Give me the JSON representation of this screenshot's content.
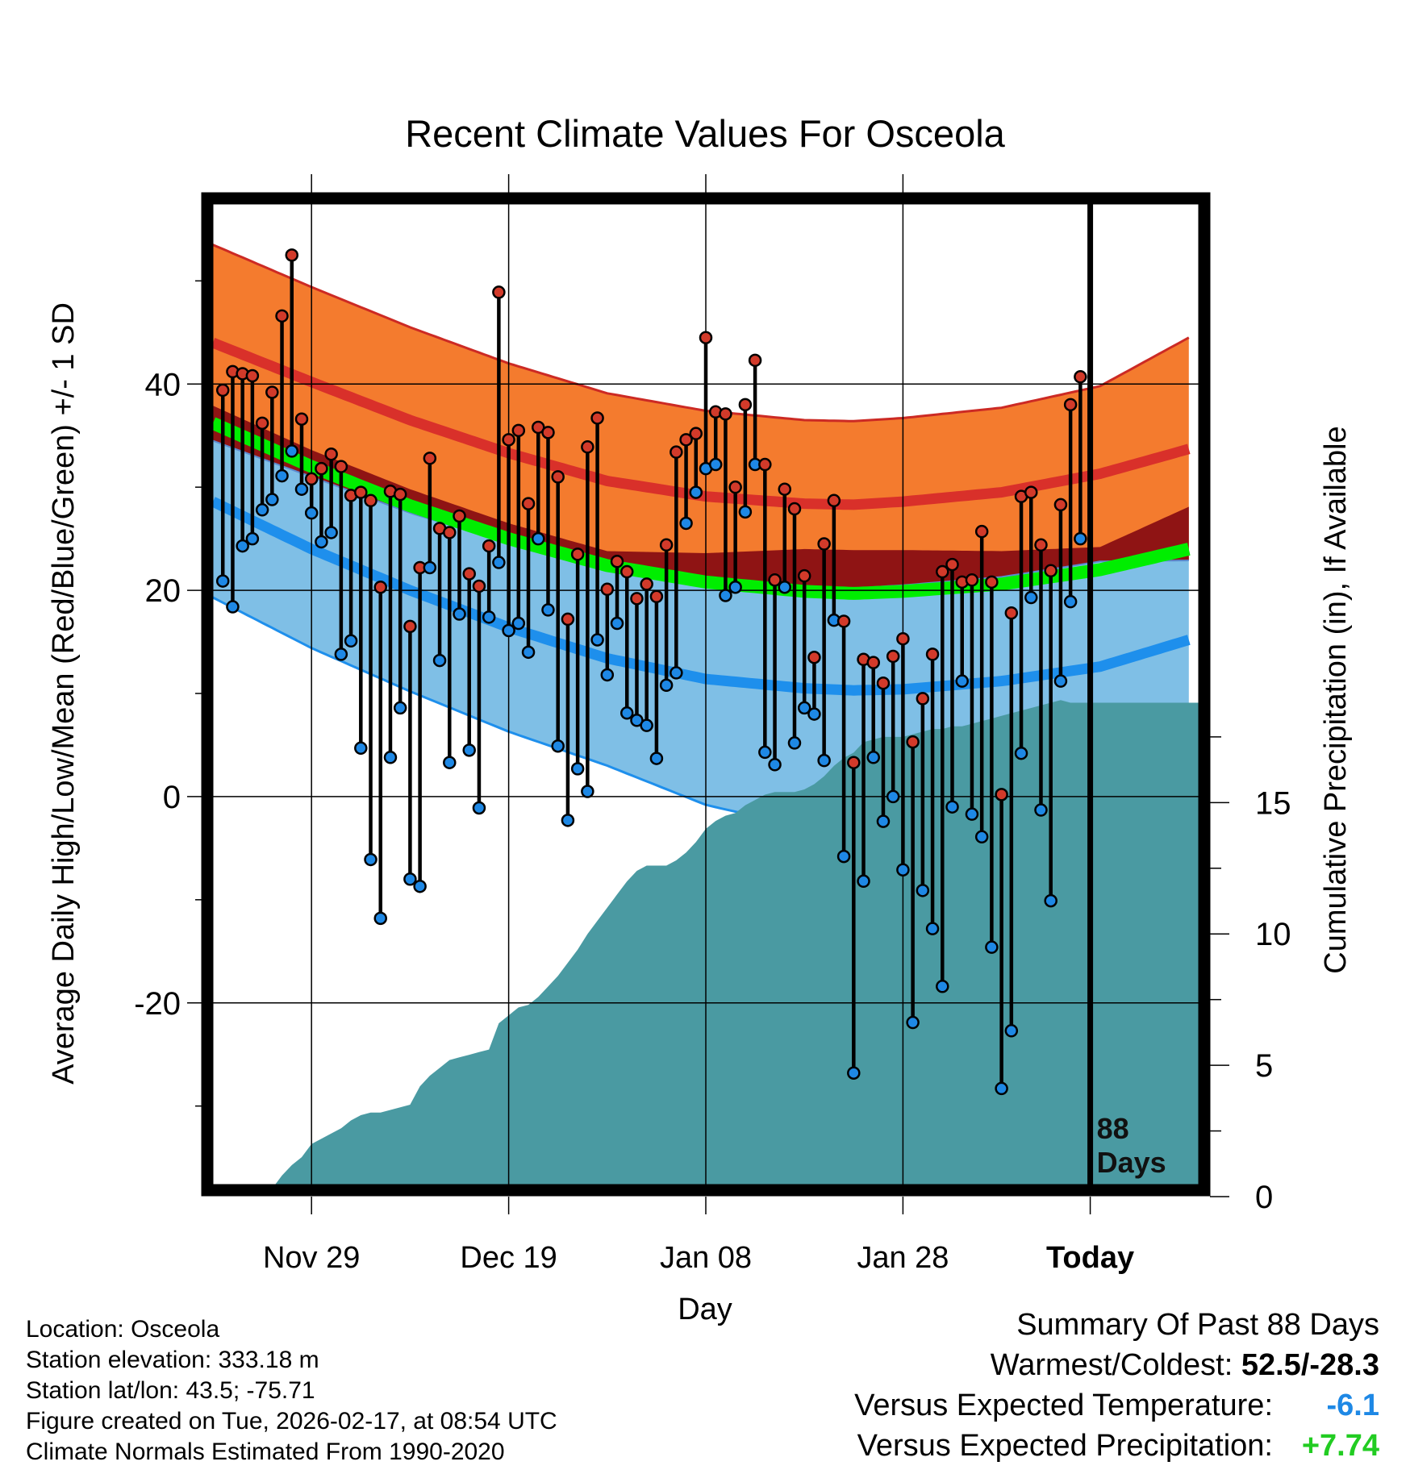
{
  "chart_data": {
    "type": "line",
    "title": "Recent Climate Values For Osceola",
    "xlabel": "Day",
    "ylabel": "Average Daily High/Low/Mean (Red/Blue/Green) +/- 1 SD",
    "y2label": "Cumulative Precipitation (in), If Available",
    "ylim": [
      -38,
      58
    ],
    "y2lim": [
      0,
      38
    ],
    "xlim": [
      0,
      100
    ],
    "today_day": 89,
    "days_label": [
      "88",
      "Days"
    ],
    "x_ticks": [
      {
        "day": 10,
        "label": "Nov 29"
      },
      {
        "day": 30,
        "label": "Dec 19"
      },
      {
        "day": 50,
        "label": "Jan 08"
      },
      {
        "day": 70,
        "label": "Jan 28"
      },
      {
        "day": 89,
        "label": "Today"
      }
    ],
    "y_ticks": [
      -20,
      0,
      20,
      40
    ],
    "y2_ticks": [
      0,
      5,
      10,
      15
    ],
    "colors": {
      "high_band": "#f47b2e",
      "high_line": "#d9302a",
      "high_sd_edge": "#cc2a24",
      "mean_band": "#8f1414",
      "mean_line": "#00ee00",
      "low_band": "#7fbfe6",
      "low_line": "#1e8fec",
      "precip": "#4a9aa2",
      "high_dot": "#d23a2a",
      "low_dot": "#1e88e5"
    },
    "normals": {
      "days": [
        0,
        10,
        20,
        30,
        40,
        50,
        60,
        65,
        70,
        80,
        90,
        99
      ],
      "high_mean": [
        44.0,
        40.2,
        36.5,
        33.3,
        30.6,
        29.1,
        28.4,
        28.3,
        28.6,
        29.5,
        31.3,
        33.7
      ],
      "high_sd": [
        9.5,
        9.2,
        9.0,
        8.7,
        8.5,
        8.3,
        8.1,
        8.1,
        8.1,
        8.2,
        8.5,
        10.8
      ],
      "mean": [
        36.2,
        32.0,
        28.2,
        25.0,
        22.4,
        20.8,
        19.9,
        19.7,
        19.9,
        20.6,
        22.0,
        24.0
      ],
      "low_mean": [
        28.6,
        24.0,
        20.0,
        16.4,
        13.4,
        11.4,
        10.5,
        10.3,
        10.4,
        11.2,
        12.6,
        15.2
      ],
      "low_sd": [
        9.3,
        9.6,
        9.8,
        10.1,
        10.4,
        12.2,
        13.5,
        13.6,
        13.5,
        12.6,
        11.6,
        12.9
      ]
    },
    "series": [
      {
        "name": "High",
        "values": [
          39.4,
          41.2,
          41.0,
          40.8,
          36.2,
          39.2,
          46.6,
          52.5,
          36.6,
          30.8,
          31.8,
          33.2,
          32.0,
          29.2,
          29.5,
          28.7,
          20.3,
          29.6,
          29.3,
          16.5,
          22.2,
          32.8,
          26.0,
          25.6,
          27.2,
          21.6,
          20.4,
          24.3,
          48.9,
          34.6,
          35.5,
          28.4,
          35.8,
          35.3,
          31.0,
          17.2,
          23.5,
          33.9,
          36.7,
          20.1,
          22.8,
          21.8,
          19.2,
          20.6,
          19.4,
          24.4,
          33.4,
          34.6,
          35.2,
          44.5,
          37.3,
          37.1,
          30.0,
          38.0,
          42.3,
          32.2,
          21.0,
          29.8,
          27.9,
          21.4,
          13.5,
          24.5,
          28.7,
          17.0,
          3.3,
          13.3,
          13.0,
          11.0,
          13.6,
          15.3,
          5.3,
          9.5,
          13.8,
          21.8,
          22.5,
          20.8,
          21.0,
          25.7,
          20.8,
          0.2,
          17.8,
          29.1,
          29.5,
          24.4,
          21.9,
          28.3,
          38.0,
          40.7
        ]
      },
      {
        "name": "Low",
        "values": [
          20.9,
          18.4,
          24.3,
          25.0,
          27.8,
          28.8,
          31.1,
          33.5,
          29.8,
          27.5,
          24.7,
          25.6,
          13.8,
          15.1,
          4.7,
          -6.1,
          -11.8,
          3.8,
          8.6,
          -8.0,
          -8.7,
          22.2,
          13.2,
          3.3,
          17.7,
          4.5,
          -1.1,
          17.4,
          22.7,
          16.1,
          16.8,
          14.0,
          25.0,
          18.1,
          4.9,
          -2.3,
          2.7,
          0.5,
          15.2,
          11.8,
          16.8,
          8.1,
          7.4,
          6.9,
          3.7,
          10.8,
          12.0,
          26.5,
          29.5,
          31.8,
          32.2,
          19.5,
          20.3,
          27.6,
          32.2,
          4.3,
          3.1,
          20.3,
          5.2,
          8.6,
          8.0,
          3.5,
          17.1,
          -5.8,
          -26.8,
          -8.2,
          3.8,
          -2.4,
          0.0,
          -7.1,
          -21.9,
          -9.1,
          -12.8,
          -18.4,
          -1.0,
          11.2,
          -1.7,
          -3.9,
          -14.6,
          -28.3,
          -22.7,
          4.2,
          19.3,
          -1.3,
          -10.1,
          11.2,
          18.9,
          25.0
        ]
      },
      {
        "name": "Cumulative Precipitation",
        "values": [
          0.0,
          0.0,
          0.0,
          0.0,
          0.0,
          0.1,
          0.3,
          0.8,
          1.2,
          1.5,
          2.0,
          2.2,
          2.4,
          2.6,
          2.9,
          3.1,
          3.2,
          3.2,
          3.3,
          3.4,
          3.5,
          4.2,
          4.6,
          4.9,
          5.2,
          5.3,
          5.4,
          5.5,
          5.6,
          6.6,
          6.9,
          7.2,
          7.3,
          7.6,
          8.0,
          8.4,
          8.9,
          9.4,
          10.0,
          10.5,
          11.0,
          11.5,
          12.0,
          12.4,
          12.6,
          12.6,
          12.6,
          12.8,
          13.1,
          13.5,
          14.0,
          14.3,
          14.5,
          14.6,
          14.9,
          15.1,
          15.3,
          15.4,
          15.4,
          15.4,
          15.5,
          15.7,
          16.0,
          16.4,
          16.7,
          16.9,
          17.3,
          17.4,
          17.5,
          17.5,
          17.5,
          17.6,
          17.7,
          17.8,
          17.8,
          17.9,
          17.9,
          18.0,
          18.1,
          18.2,
          18.3,
          18.4,
          18.5,
          18.6,
          18.7,
          18.8,
          18.9,
          18.8
        ]
      }
    ]
  },
  "footer": {
    "location": "Location: Osceola",
    "elevation": "Station elevation: 333.18 m",
    "latlon": "Station lat/lon: 43.5; -75.71",
    "created": "Figure created on Tue, 2026-02-17, at 08:54 UTC",
    "normals": "Climate Normals Estimated From 1990-2020"
  },
  "summary": {
    "title": "Summary Of Past 88 Days",
    "warmest_label": "Warmest/Coldest:",
    "warmest_value": "52.5/-28.3",
    "temp_label": "Versus Expected Temperature:",
    "temp_value": "-6.1",
    "temp_color": "#1e88e5",
    "precip_label": "Versus Expected Precipitation:",
    "precip_value": "+7.74",
    "precip_color": "#22cc22"
  }
}
